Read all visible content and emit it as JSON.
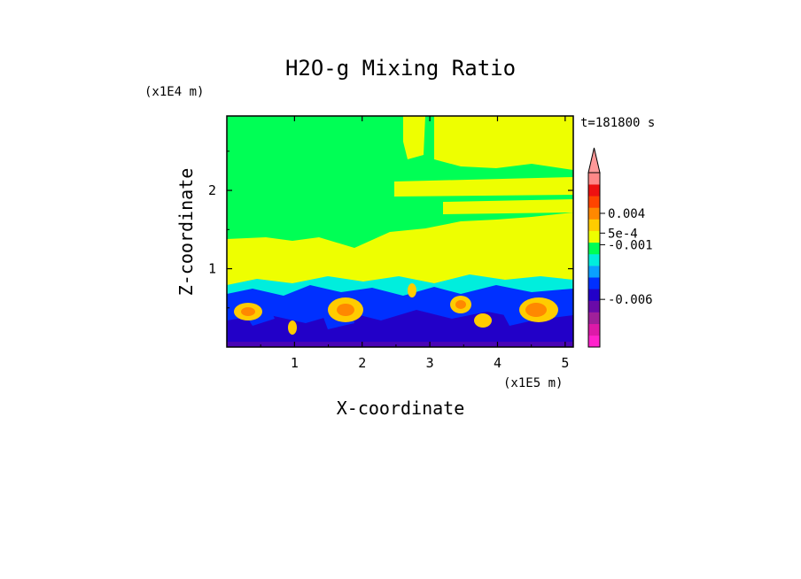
{
  "chart_data": {
    "type": "heatmap",
    "title": "H2O-g Mixing Ratio",
    "xlabel": "X-coordinate",
    "ylabel": "Z-coordinate",
    "x_multiplier": "(x1E5 m)",
    "y_multiplier": "(x1E4 m)",
    "time_label": "t=181800 s",
    "xlim": [
      0,
      5.12
    ],
    "ylim": [
      0,
      2.95
    ],
    "x_ticks": [
      1,
      2,
      3,
      4,
      5
    ],
    "y_ticks": [
      1,
      2
    ],
    "colorbar": {
      "colors": [
        "#ff22cc",
        "#dd1aa8",
        "#a0209a",
        "#6a0aa8",
        "#2200c8",
        "#0030ff",
        "#0aa0ff",
        "#00eedd",
        "#00ff55",
        "#eeff00",
        "#ffcc00",
        "#ff8800",
        "#ff4400",
        "#ee1111",
        "#ff8888"
      ],
      "labels": [
        {
          "text": "0.004",
          "level": 11.5
        },
        {
          "text": "5e-4",
          "level": 9.8
        },
        {
          "text": "-0.001",
          "level": 8.8
        },
        {
          "text": "-0.006",
          "level": 4.1
        }
      ],
      "overflow_color": "#ff9999"
    }
  }
}
